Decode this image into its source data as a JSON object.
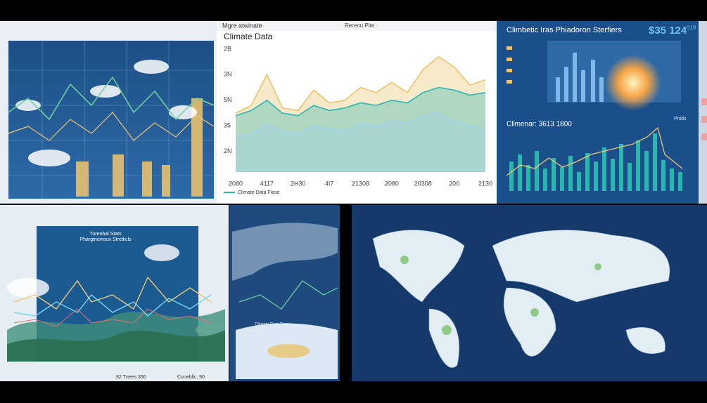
{
  "screen": {
    "header": {
      "left": "Mgre atwinate",
      "center": "Rerenu Pite"
    },
    "top_right": {
      "title": "Climbetic Iras Phiadoron Sterfiers",
      "figure": "$35 124",
      "figure_suffix": "019",
      "subtitle": "Climenar: 3613 1800",
      "tag": "Pnids"
    },
    "bottom_left": {
      "title": "Turenbal Stats",
      "subtitle": "Phargtnerroun Stretlicls",
      "footer_left": "82 Tnees 350",
      "footer_right": "Coneblic, 90"
    },
    "bottom_middle": {
      "caption": "Climate Data Trees"
    }
  },
  "chart_data": [
    {
      "type": "area-line",
      "title": "Climate Data",
      "categories": [
        "2080",
        null,
        "4117",
        null,
        "2H30",
        null,
        "4I7",
        null,
        "21308",
        null,
        "2080",
        null,
        "20308",
        null,
        "200",
        null,
        "2130"
      ],
      "series": [
        {
          "color": "#e9c46a",
          "values": [
            2.5,
            2.8,
            4.0,
            2.7,
            2.6,
            3.4,
            2.9,
            3.0,
            3.5,
            3.3,
            3.7,
            3.3,
            4.2,
            4.7,
            4.3,
            3.6,
            3.8
          ]
        },
        {
          "name": "Climate Data Fiase",
          "color": "#2ab7b0",
          "values": [
            2.4,
            2.6,
            3.0,
            2.5,
            2.4,
            2.8,
            2.6,
            2.7,
            2.9,
            2.8,
            3.0,
            2.9,
            3.3,
            3.5,
            3.4,
            3.2,
            3.3
          ]
        },
        {
          "color": "#9fd3ee",
          "values": [
            1.6,
            1.7,
            2.1,
            1.8,
            1.7,
            2.0,
            1.9,
            1.8,
            2.1,
            2.0,
            2.2,
            2.1,
            2.4,
            2.5,
            2.2,
            2.0,
            1.9
          ]
        }
      ],
      "ylim": [
        0.2,
        5.6
      ],
      "yticks": [
        {
          "value": 5,
          "label": "2B"
        },
        {
          "value": 4,
          "label": "3N"
        },
        {
          "value": 3,
          "label": "5N"
        },
        {
          "value": 2,
          "label": "35"
        },
        {
          "value": 1,
          "label": "2N"
        }
      ],
      "grid": false
    }
  ]
}
